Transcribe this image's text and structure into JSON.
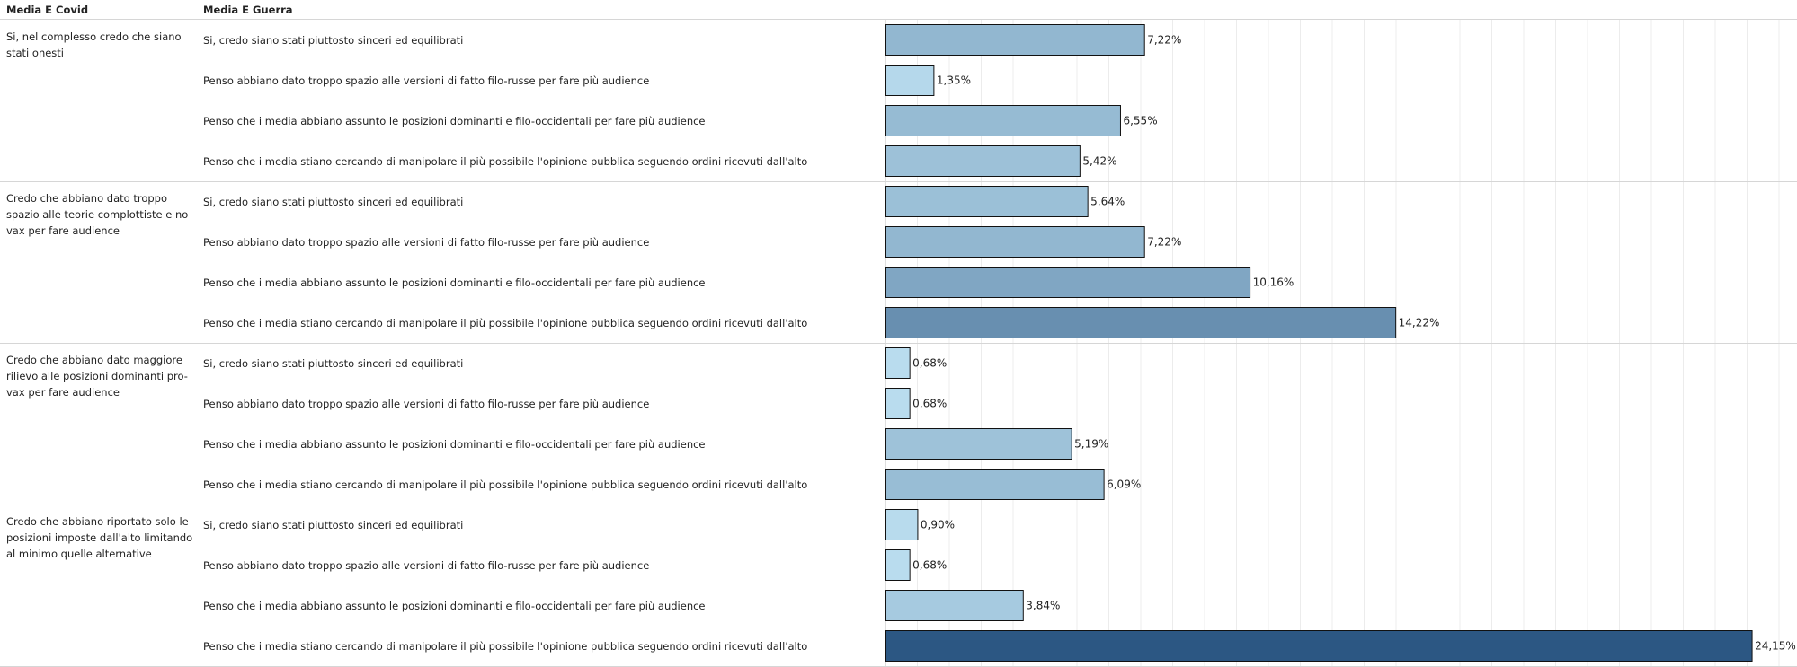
{
  "headers": {
    "covid": "Media E Covid",
    "guerra": "Media E Guerra"
  },
  "chart_data": {
    "type": "bar",
    "orientation": "horizontal",
    "xlim": [
      0,
      25
    ],
    "grid": true,
    "color_scale": {
      "low": "#b9dcee",
      "high": "#2c5783"
    },
    "groups": [
      {
        "name": "Si, nel complesso credo che siano stati onesti",
        "categories": [
          "Si, credo siano stati piuttosto sinceri ed equilibrati",
          "Penso abbiano dato troppo spazio alle versioni di fatto filo-russe per fare più audience",
          "Penso che i media abbiano assunto le posizioni dominanti e filo-occidentali per fare più audience",
          "Penso che i media stiano cercando di manipolare il più possibile l'opinione pubblica seguendo ordini ricevuti dall'alto"
        ],
        "values": [
          7.22,
          1.35,
          6.55,
          5.42
        ],
        "labels": [
          "7,22%",
          "1,35%",
          "6,55%",
          "5,42%"
        ]
      },
      {
        "name": "Credo che abbiano dato troppo spazio alle teorie complottiste e no vax per fare audience",
        "categories": [
          "Si, credo siano stati piuttosto sinceri ed equilibrati",
          "Penso abbiano dato troppo spazio alle versioni di fatto filo-russe per fare più audience",
          "Penso che i media abbiano assunto le posizioni dominanti e filo-occidentali per fare più audience",
          "Penso che i media stiano cercando di manipolare il più possibile l'opinione pubblica seguendo ordini ricevuti dall'alto"
        ],
        "values": [
          5.64,
          7.22,
          10.16,
          14.22
        ],
        "labels": [
          "5,64%",
          "7,22%",
          "10,16%",
          "14,22%"
        ]
      },
      {
        "name": "Credo che abbiano dato maggiore rilievo alle posizioni dominanti pro-vax per fare audience",
        "categories": [
          "Si, credo siano stati piuttosto sinceri ed equilibrati",
          "Penso abbiano dato troppo spazio alle versioni di fatto filo-russe per fare più audience",
          "Penso che i media abbiano assunto le posizioni dominanti e filo-occidentali per fare più audience",
          "Penso che i media stiano cercando di manipolare il più possibile l'opinione pubblica seguendo ordini ricevuti dall'alto"
        ],
        "values": [
          0.68,
          0.68,
          5.19,
          6.09
        ],
        "labels": [
          "0,68%",
          "0,68%",
          "5,19%",
          "6,09%"
        ]
      },
      {
        "name": "Credo che abbiano riportato solo le posizioni imposte dall'alto limitando al minimo quelle alternative",
        "categories": [
          "Si, credo siano stati piuttosto sinceri ed equilibrati",
          "Penso abbiano dato troppo spazio alle versioni di fatto filo-russe per fare più audience",
          "Penso che i media abbiano assunto le posizioni dominanti e filo-occidentali per fare più audience",
          "Penso che i media stiano cercando di manipolare il più possibile l'opinione pubblica seguendo ordini ricevuti dall'alto"
        ],
        "values": [
          0.9,
          0.68,
          3.84,
          24.15
        ],
        "labels": [
          "0,90%",
          "0,68%",
          "3,84%",
          "24,15%"
        ]
      }
    ]
  }
}
